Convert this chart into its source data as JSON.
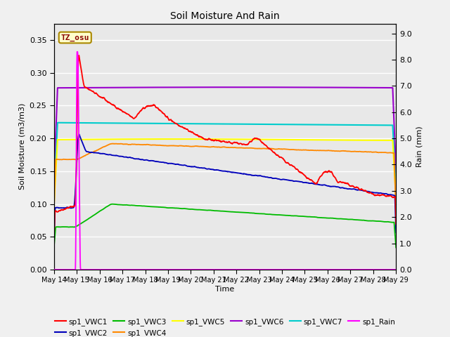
{
  "title": "Soil Moisture And Rain",
  "xlabel": "Time",
  "ylabel_left": "Soil Moisture (m3/m3)",
  "ylabel_right": "Rain (mm)",
  "annotation_text": "TZ_osu",
  "ylim_left": [
    0.0,
    0.375
  ],
  "ylim_right": [
    0.0,
    9.375
  ],
  "x_tick_labels": [
    "May 14",
    "May 15",
    "May 16",
    "May 17",
    "May 18",
    "May 19",
    "May 20",
    "May 21",
    "May 22",
    "May 23",
    "May 24",
    "May 25",
    "May 26",
    "May 27",
    "May 28",
    "May 29"
  ],
  "background_color": "#f0f0f0",
  "plot_bg_color": "#e8e8e8",
  "series_colors": {
    "sp1_VWC1": "#ff0000",
    "sp1_VWC2": "#0000bb",
    "sp1_VWC3": "#00bb00",
    "sp1_VWC4": "#ff8800",
    "sp1_VWC5": "#ffff00",
    "sp1_VWC6": "#9900cc",
    "sp1_VWC7": "#00cccc",
    "sp1_Rain": "#ff00ff"
  },
  "legend_row1": [
    "sp1_VWC1",
    "sp1_VWC2",
    "sp1_VWC3",
    "sp1_VWC4",
    "sp1_VWC5",
    "sp1_VWC6"
  ],
  "legend_row2": [
    "sp1_VWC7",
    "sp1_Rain"
  ]
}
